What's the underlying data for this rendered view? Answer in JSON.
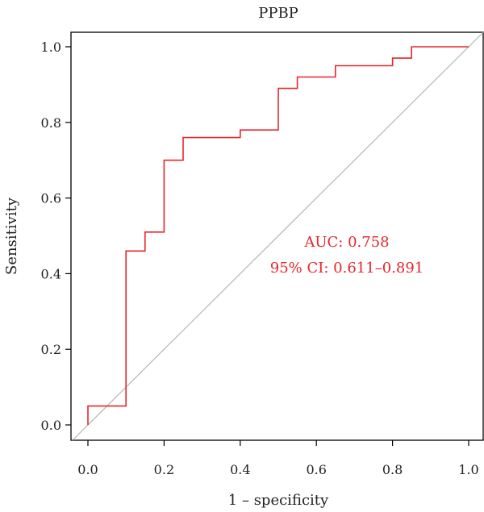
{
  "chart_data": {
    "type": "line",
    "title": "PPBP",
    "xlabel": "1 – specificity",
    "ylabel": "Sensitivity",
    "xlim": [
      0,
      1
    ],
    "ylim": [
      0,
      1
    ],
    "x_ticks": [
      "0.0",
      "0.2",
      "0.4",
      "0.6",
      "0.8",
      "1.0"
    ],
    "y_ticks": [
      "0.0",
      "0.2",
      "0.4",
      "0.6",
      "0.8",
      "1.0"
    ],
    "grid": false,
    "legend": null,
    "series": [
      {
        "color": "#e8262b",
        "x": [
          0.0,
          0.0,
          0.1,
          0.1,
          0.15,
          0.15,
          0.2,
          0.2,
          0.25,
          0.25,
          0.4,
          0.4,
          0.5,
          0.5,
          0.55,
          0.55,
          0.65,
          0.65,
          0.8,
          0.8,
          0.85,
          0.85,
          1.0
        ],
        "y": [
          0.0,
          0.05,
          0.05,
          0.46,
          0.46,
          0.51,
          0.51,
          0.7,
          0.7,
          0.76,
          0.76,
          0.78,
          0.78,
          0.89,
          0.89,
          0.92,
          0.92,
          0.95,
          0.95,
          0.97,
          0.97,
          1.0,
          1.0
        ]
      }
    ],
    "reference_line": {
      "x": [
        0,
        1
      ],
      "y": [
        0,
        1
      ],
      "color": "#b5b5b5"
    },
    "annotations": [
      {
        "text": "AUC: 0.758",
        "color": "#e8262b"
      },
      {
        "text": "95% CI: 0.611–0.891",
        "color": "#e8262b"
      }
    ]
  }
}
